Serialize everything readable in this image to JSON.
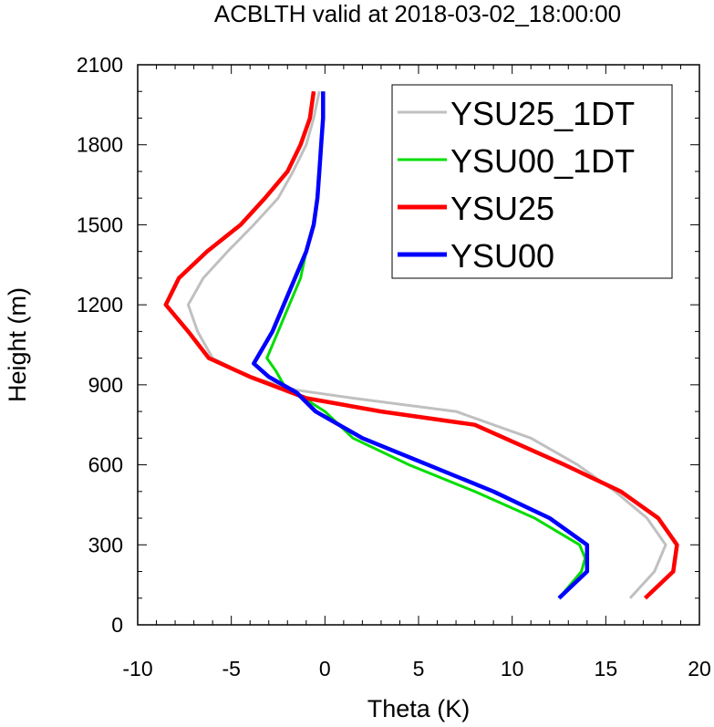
{
  "chart_data": {
    "type": "line",
    "title": "ACBLTH valid at 2018-03-02_18:00:00",
    "xlabel": "Theta (K)",
    "ylabel": "Height (m)",
    "xlim": [
      -10,
      20
    ],
    "ylim": [
      0,
      2100
    ],
    "xticks": [
      "-10",
      "-5",
      "0",
      "5",
      "10",
      "15",
      "20"
    ],
    "yticks": [
      "0",
      "300",
      "600",
      "900",
      "1200",
      "1500",
      "1800",
      "2100"
    ],
    "legend_position": "top-right",
    "grid": false,
    "series": [
      {
        "name": "YSU25_1DT",
        "color": "#c0c0c0",
        "width": "thin",
        "points": [
          [
            16.3,
            100
          ],
          [
            17.6,
            200
          ],
          [
            18.2,
            300
          ],
          [
            17.2,
            400
          ],
          [
            15.5,
            500
          ],
          [
            13.5,
            600
          ],
          [
            11,
            700
          ],
          [
            7,
            800
          ],
          [
            1.5,
            850
          ],
          [
            -1.5,
            880
          ],
          [
            -4,
            930
          ],
          [
            -6,
            1000
          ],
          [
            -6.8,
            1100
          ],
          [
            -7.3,
            1200
          ],
          [
            -6.5,
            1300
          ],
          [
            -5.2,
            1400
          ],
          [
            -3.8,
            1500
          ],
          [
            -2.5,
            1600
          ],
          [
            -1.7,
            1700
          ],
          [
            -1,
            1800
          ],
          [
            -0.6,
            1900
          ],
          [
            -0.3,
            2000
          ]
        ]
      },
      {
        "name": "YSU00_1DT",
        "color": "#00dd00",
        "width": "thin",
        "points": [
          [
            12.5,
            100
          ],
          [
            13.7,
            200
          ],
          [
            13.9,
            250
          ],
          [
            13.6,
            300
          ],
          [
            11.2,
            400
          ],
          [
            8,
            500
          ],
          [
            4.5,
            600
          ],
          [
            1.5,
            700
          ],
          [
            0,
            800
          ],
          [
            -1.8,
            880
          ],
          [
            -2.2,
            900
          ],
          [
            -2.6,
            950
          ],
          [
            -3.1,
            1000
          ],
          [
            -2.5,
            1100
          ],
          [
            -1.9,
            1200
          ],
          [
            -1.3,
            1300
          ],
          [
            -1,
            1400
          ],
          [
            -0.6,
            1500
          ],
          [
            -0.4,
            1600
          ],
          [
            -0.3,
            1700
          ],
          [
            -0.2,
            1800
          ],
          [
            -0.1,
            1900
          ],
          [
            -0.1,
            2000
          ]
        ]
      },
      {
        "name": "YSU25",
        "color": "#ff0000",
        "width": "thick",
        "points": [
          [
            17.1,
            100
          ],
          [
            18.6,
            200
          ],
          [
            18.8,
            300
          ],
          [
            17.8,
            400
          ],
          [
            15.8,
            500
          ],
          [
            12.8,
            600
          ],
          [
            8,
            750
          ],
          [
            3,
            800
          ],
          [
            -1,
            850
          ],
          [
            -4,
            930
          ],
          [
            -6.2,
            1000
          ],
          [
            -7.3,
            1100
          ],
          [
            -8.5,
            1200
          ],
          [
            -7.8,
            1300
          ],
          [
            -6.3,
            1400
          ],
          [
            -4.5,
            1500
          ],
          [
            -3.2,
            1600
          ],
          [
            -2,
            1700
          ],
          [
            -1.3,
            1800
          ],
          [
            -0.8,
            1900
          ],
          [
            -0.6,
            2000
          ]
        ]
      },
      {
        "name": "YSU00",
        "color": "#0000ff",
        "width": "thick",
        "points": [
          [
            12.5,
            100
          ],
          [
            14,
            200
          ],
          [
            14,
            300
          ],
          [
            12,
            400
          ],
          [
            9,
            500
          ],
          [
            5.5,
            600
          ],
          [
            2,
            700
          ],
          [
            -0.5,
            800
          ],
          [
            -1.5,
            870
          ],
          [
            -3,
            930
          ],
          [
            -3.8,
            980
          ],
          [
            -2.8,
            1100
          ],
          [
            -1.6,
            1300
          ],
          [
            -1,
            1400
          ],
          [
            -0.6,
            1500
          ],
          [
            -0.4,
            1600
          ],
          [
            -0.3,
            1700
          ],
          [
            -0.2,
            1800
          ],
          [
            -0.1,
            1900
          ],
          [
            -0.1,
            2000
          ]
        ]
      }
    ]
  }
}
